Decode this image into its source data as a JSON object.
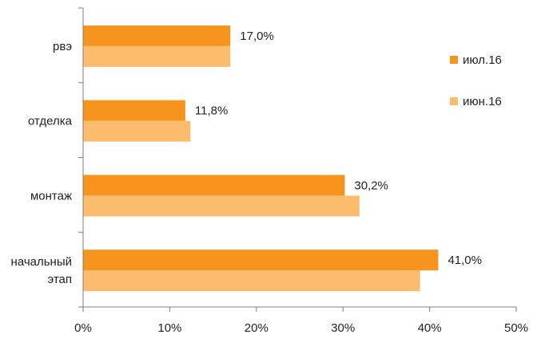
{
  "chart_data": {
    "type": "bar",
    "orientation": "horizontal",
    "categories": [
      [
        "рвэ"
      ],
      [
        "отделка"
      ],
      [
        "монтаж"
      ],
      [
        "начальный",
        "этап"
      ]
    ],
    "series": [
      {
        "name": "июл.16",
        "values": [
          17.0,
          11.8,
          30.2,
          41.0
        ],
        "color": "#F7941D",
        "data_labels": [
          "17,0%",
          "11,8%",
          "30,2%",
          "41,0%"
        ]
      },
      {
        "name": "июн.16",
        "values": [
          17.0,
          12.4,
          31.9,
          38.9
        ],
        "color": "#FBBD6C"
      }
    ],
    "xlim": [
      0,
      50
    ],
    "xticks": [
      0,
      10,
      20,
      30,
      40,
      50
    ],
    "xtick_labels": [
      "0%",
      "10%",
      "20%",
      "30%",
      "40%",
      "50%"
    ],
    "title": "",
    "xlabel": "",
    "ylabel": "",
    "grid": false,
    "legend_position": "right"
  },
  "colors": {
    "axis": "#7F7F7F"
  }
}
